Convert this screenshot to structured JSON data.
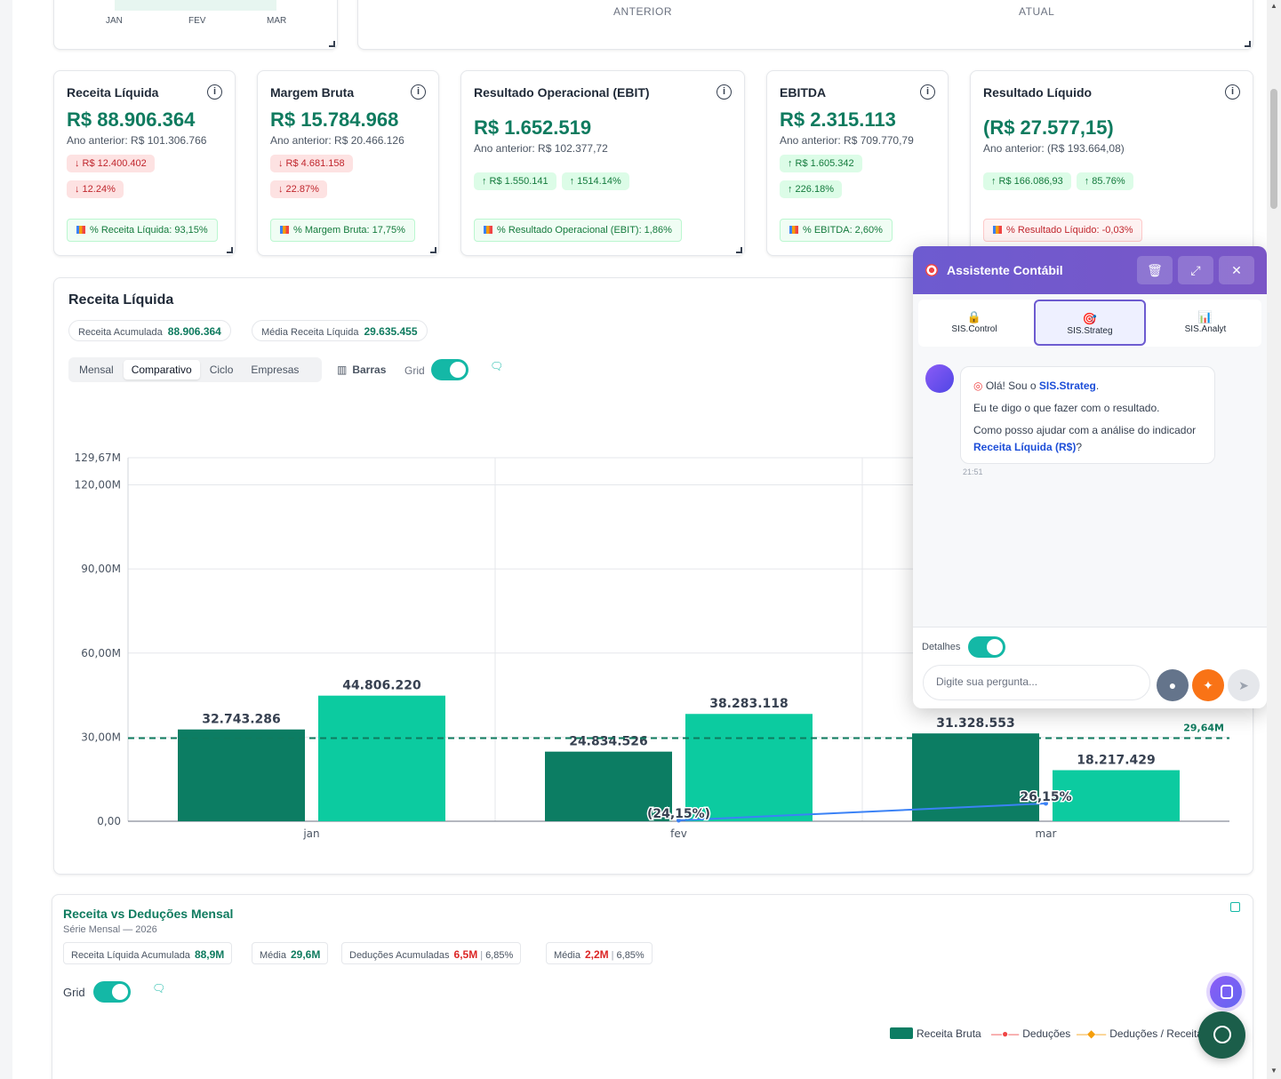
{
  "top_partial": {
    "months": [
      "JAN",
      "FEV",
      "MAR"
    ],
    "labels": [
      "ANTERIOR",
      "ATUAL"
    ]
  },
  "kpis": [
    {
      "title": "Receita Líquida",
      "value": "R$ 88.906.364",
      "prev": "Ano anterior: R$ 101.306.766",
      "chips": [
        {
          "text": "↓ R$ 12.400.402",
          "tone": "red"
        },
        {
          "text": "↓ 12.24%",
          "tone": "red"
        }
      ],
      "pct": "% Receita Líquida: 93,15%",
      "pct_tone": "green"
    },
    {
      "title": "Margem Bruta",
      "value": "R$ 15.784.968",
      "prev": "Ano anterior: R$ 20.466.126",
      "chips": [
        {
          "text": "↓ R$ 4.681.158",
          "tone": "red"
        },
        {
          "text": "↓ 22.87%",
          "tone": "red"
        }
      ],
      "pct": "% Margem Bruta: 17,75%",
      "pct_tone": "green"
    },
    {
      "title": "Resultado Operacional (EBIT)",
      "value": "R$ 1.652.519",
      "prev": "Ano anterior: R$ 102.377,72",
      "chips": [
        {
          "text": "↑ R$ 1.550.141",
          "tone": "green"
        },
        {
          "text": "↑ 1514.14%",
          "tone": "green"
        }
      ],
      "pct": "% Resultado Operacional (EBIT): 1,86%",
      "pct_tone": "green"
    },
    {
      "title": "EBITDA",
      "value": "R$ 2.315.113",
      "prev": "Ano anterior: R$ 709.770,79",
      "chips": [
        {
          "text": "↑ R$ 1.605.342",
          "tone": "green"
        },
        {
          "text": "↑ 226.18%",
          "tone": "green"
        }
      ],
      "pct": "% EBITDA: 2,60%",
      "pct_tone": "green"
    },
    {
      "title": "Resultado Líquido",
      "value": "(R$ 27.577,15)",
      "prev": "Ano anterior: (R$ 193.664,08)",
      "chips": [
        {
          "text": "↑ R$ 166.086,93",
          "tone": "green"
        },
        {
          "text": "↑ 85.76%",
          "tone": "green"
        }
      ],
      "pct": "% Resultado Líquido: -0,03%",
      "pct_tone": "red"
    }
  ],
  "main_chart_card": {
    "title": "Receita Líquida",
    "pill1_label": "Receita Acumulada",
    "pill1_value": "88.906.364",
    "pill2_label": "Média Receita Líquida",
    "pill2_value": "29.635.455",
    "modes": [
      "Mensal",
      "Comparativo",
      "Ciclo",
      "Empresas"
    ],
    "active_mode": "Comparativo",
    "barras_label": "Barras",
    "grid_label": "Grid"
  },
  "chart_data": {
    "type": "bar",
    "categories": [
      "jan",
      "fev",
      "mar"
    ],
    "series": [
      {
        "name": "",
        "values": [
          32743286,
          24834526,
          31328553
        ],
        "value_labels": [
          "32.743.286",
          "24.834.526",
          "31.328.553"
        ],
        "color": "#0c7d63"
      },
      {
        "name": "",
        "values": [
          44806220,
          38283118,
          18217429
        ],
        "value_labels": [
          "44.806.220",
          "38.283.118",
          "18.217.429"
        ],
        "color": "#0ccba0"
      }
    ],
    "line": {
      "points": [
        {
          "x": "fev",
          "label": "(24,15%)"
        },
        {
          "x": "mar",
          "label": "26,15%"
        }
      ],
      "color": "#3b82f6"
    },
    "average": {
      "value": 29640000,
      "label": "29,64M"
    },
    "yticks": [
      0,
      30000000,
      60000000,
      90000000,
      120000000,
      129670000
    ],
    "ytick_labels": [
      "0,00",
      "30,00M",
      "60,00M",
      "90,00M",
      "120,00M",
      "129,67M"
    ],
    "ylim": [
      0,
      129670000
    ],
    "grid": true
  },
  "second_card": {
    "title": "Receita vs Deduções Mensal",
    "subtitle": "Série Mensal — 2026",
    "pills": [
      {
        "label": "Receita Líquida Acumulada",
        "value": "88,9M",
        "tone": "g",
        "extra": ""
      },
      {
        "label": "Média",
        "value": "29,6M",
        "tone": "g",
        "extra": ""
      },
      {
        "label": "Deduções Acumuladas",
        "value": "6,5M",
        "tone": "r",
        "extra": "6,85%"
      },
      {
        "label": "Média",
        "value": "2,2M",
        "tone": "r",
        "extra": "6,85%"
      }
    ],
    "grid_label": "Grid",
    "legend": [
      "Receita Bruta",
      "Deduções",
      "Deduções / Receita"
    ]
  },
  "assistant": {
    "title": "Assistente Contábil",
    "tabs": [
      {
        "label": "SIS.Control",
        "icon": "🔒"
      },
      {
        "label": "SIS.Strateg",
        "icon": "🎯"
      },
      {
        "label": "SIS.Analyt",
        "icon": "📊"
      }
    ],
    "greeting_pre": "Olá! Sou o ",
    "greeting_name": "SIS.Strateg",
    "line2": "Eu te digo o que fazer com o resultado.",
    "line3_pre": "Como posso ajudar com a análise do indicador ",
    "line3_hl": "Receita Líquida (R$)",
    "time": "21:51",
    "details_label": "Detalhes",
    "input_placeholder": "Digite sua pergunta..."
  }
}
